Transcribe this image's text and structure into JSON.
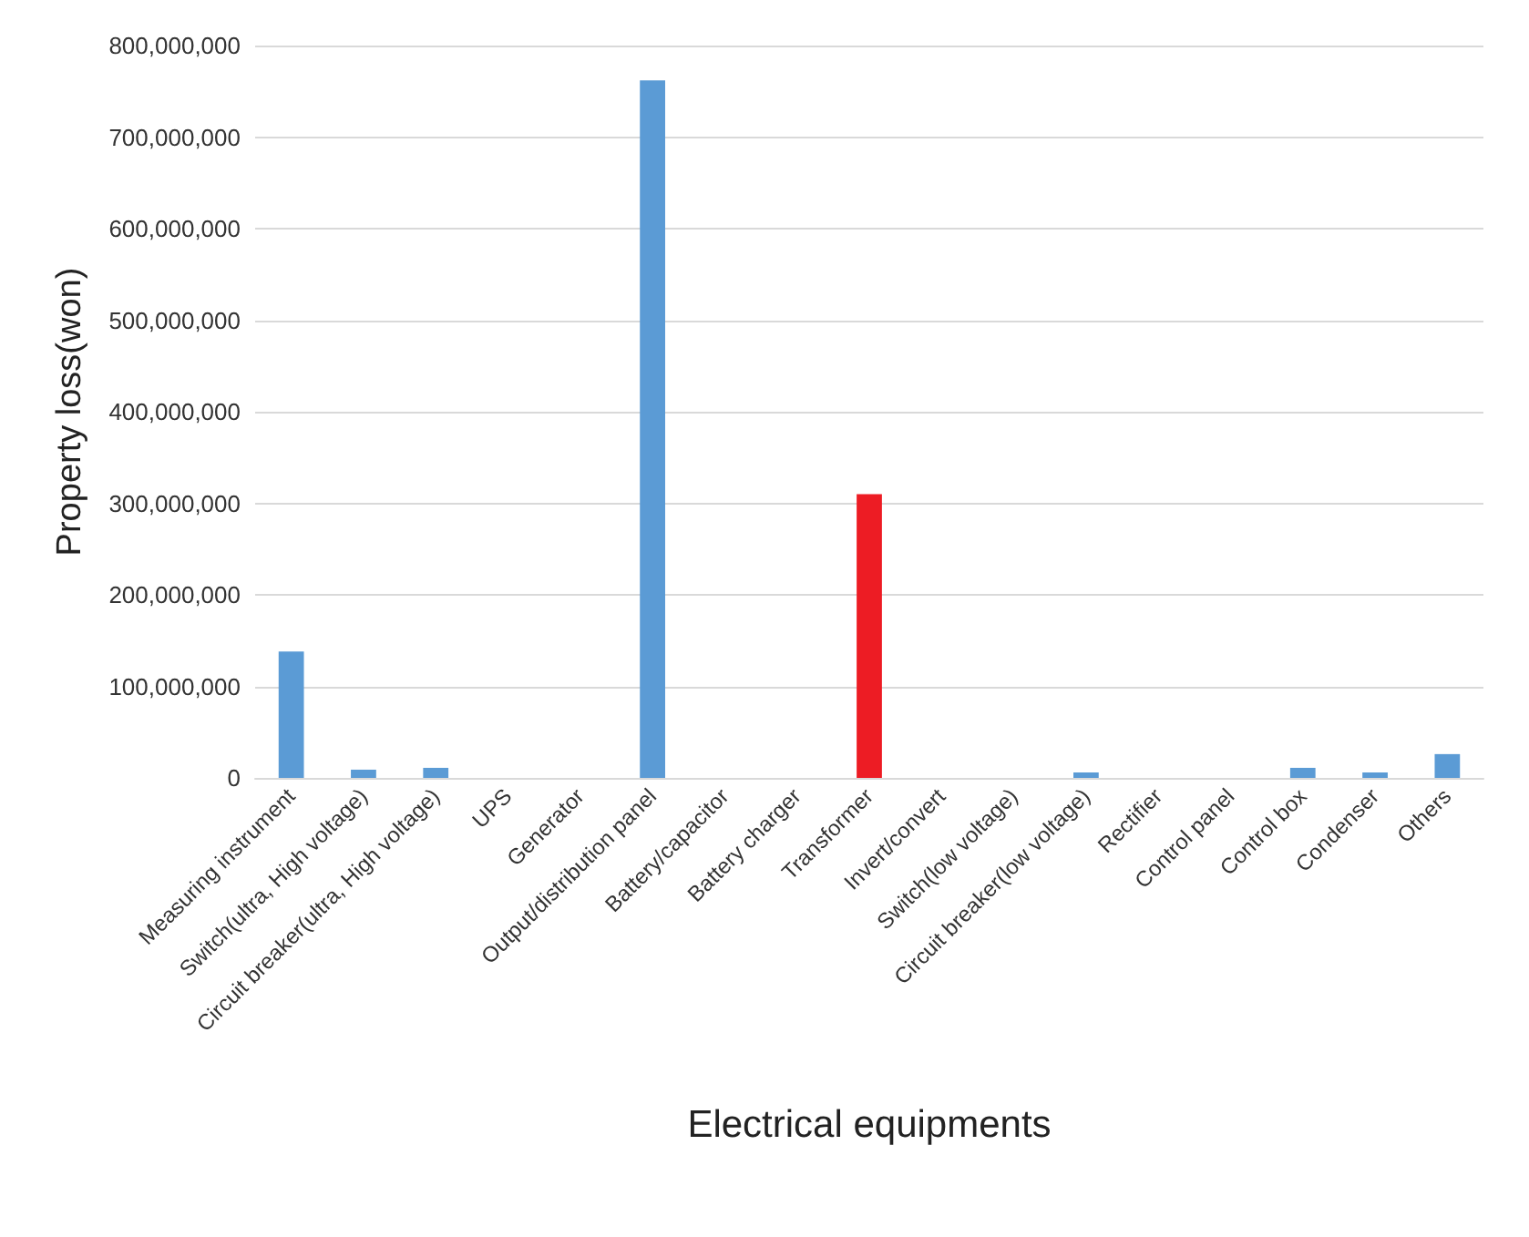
{
  "chart_data": {
    "type": "bar",
    "xlabel": "Electrical equipments",
    "ylabel": "Property loss(won)",
    "categories": [
      "Measuring instrument",
      "Switch(ultra, High voltage)",
      "Circuit breaker(ultra, High voltage)",
      "UPS",
      "Generator",
      "Output/distribution panel",
      "Battery/capacitor",
      "Battery charger",
      "Transformer",
      "Invert/convert",
      "Switch(low voltage)",
      "Circuit breaker(low voltage)",
      "Rectifier",
      "Control panel",
      "Control box",
      "Condenser",
      "Others"
    ],
    "values": [
      138000000,
      9000000,
      11000000,
      0,
      0,
      762000000,
      0,
      0,
      310000000,
      0,
      0,
      6000000,
      0,
      0,
      11000000,
      6000000,
      26000000
    ],
    "colors": [
      "#5b9bd5",
      "#5b9bd5",
      "#5b9bd5",
      "#5b9bd5",
      "#5b9bd5",
      "#5b9bd5",
      "#5b9bd5",
      "#5b9bd5",
      "#ed1c24",
      "#5b9bd5",
      "#5b9bd5",
      "#5b9bd5",
      "#5b9bd5",
      "#5b9bd5",
      "#5b9bd5",
      "#5b9bd5",
      "#5b9bd5"
    ],
    "ylim": [
      0,
      800000000
    ],
    "yticks": [
      0,
      {
        "value": 100000000,
        "label": "100,000,000"
      },
      {
        "value": 200000000,
        "label": "200,000,000"
      },
      {
        "value": 300000000,
        "label": "300,000,000"
      },
      {
        "value": 400000000,
        "label": "400,000,000"
      },
      {
        "value": 500000000,
        "label": "500,000,000"
      },
      {
        "value": 600000000,
        "label": "600,000,000"
      },
      {
        "value": 700000000,
        "label": "700,000,000"
      },
      {
        "value": 800000000,
        "label": "800,000,000"
      }
    ],
    "grid": "y"
  }
}
